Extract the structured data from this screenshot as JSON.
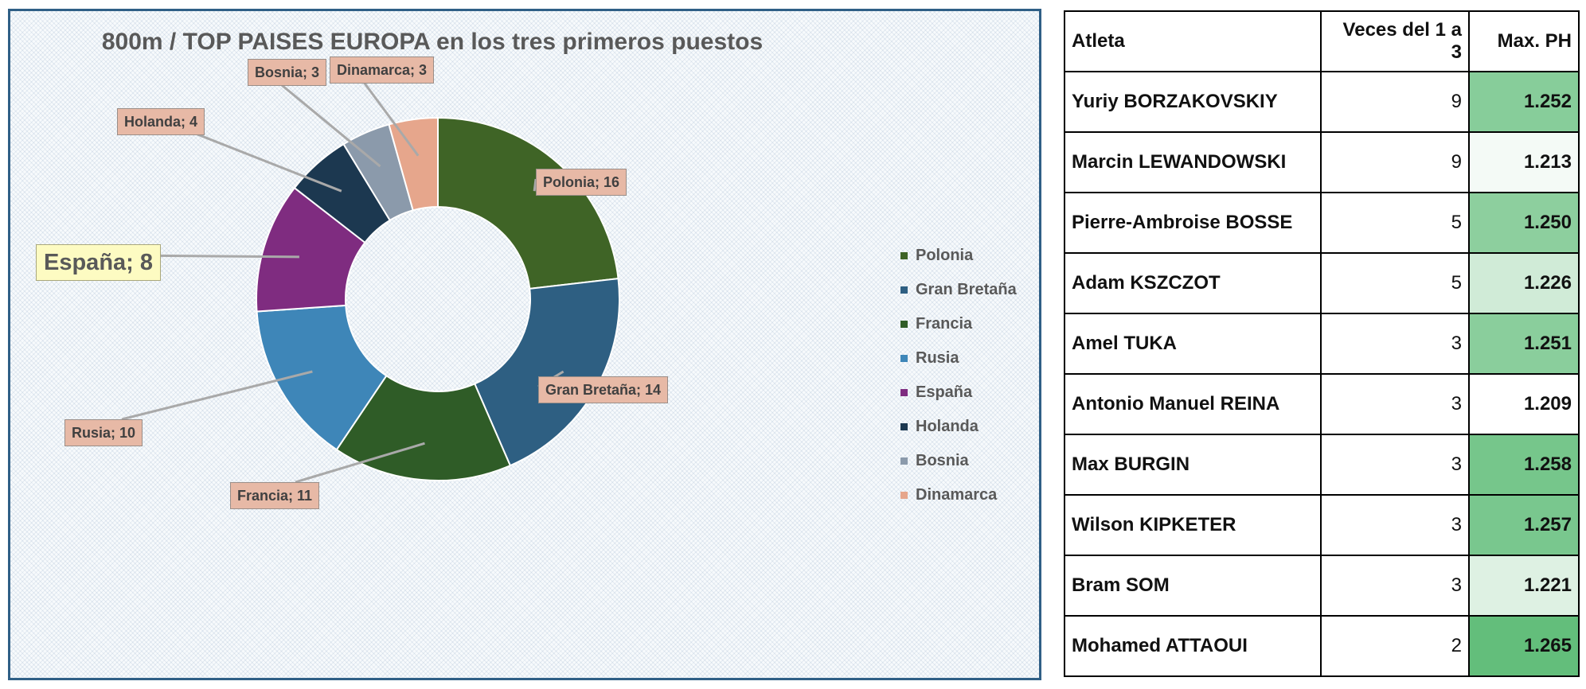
{
  "chart_data": {
    "type": "pie",
    "donut": true,
    "title": "800m / TOP  PAISES EUROPA en los tres primeros puestos",
    "categories": [
      "Polonia",
      "Gran Bretaña",
      "Francia",
      "Rusia",
      "España",
      "Holanda",
      "Bosnia",
      "Dinamarca"
    ],
    "values": [
      16,
      14,
      11,
      10,
      8,
      4,
      3,
      3
    ],
    "labels": [
      "Polonia; 16",
      "Gran Bretaña; 14",
      "Francia; 11",
      "Rusia; 10",
      "España; 8",
      "Holanda; 4",
      "Bosnia; 3",
      "Dinamarca; 3"
    ],
    "colors": [
      "#3f6426",
      "#2e5f82",
      "#2f5c27",
      "#3e86b8",
      "#7f2c80",
      "#1c3850",
      "#8b9aab",
      "#e6a68c"
    ],
    "legend_position": "right",
    "highlighted_label": "España; 8"
  },
  "table": {
    "headers": [
      "Atleta",
      "Veces del 1 a 3",
      "Max. PH"
    ],
    "rows": [
      {
        "athlete": "Yuriy BORZAKOVSKIY",
        "times": "9",
        "max_ph": "1.252",
        "max_ph_value": 1.252
      },
      {
        "athlete": "Marcin LEWANDOWSKI",
        "times": "9",
        "max_ph": "1.213",
        "max_ph_value": 1.213
      },
      {
        "athlete": "Pierre-Ambroise BOSSE",
        "times": "5",
        "max_ph": "1.250",
        "max_ph_value": 1.25
      },
      {
        "athlete": "Adam KSZCZOT",
        "times": "5",
        "max_ph": "1.226",
        "max_ph_value": 1.226
      },
      {
        "athlete": "Amel TUKA",
        "times": "3",
        "max_ph": "1.251",
        "max_ph_value": 1.251
      },
      {
        "athlete": "Antonio Manuel REINA",
        "times": "3",
        "max_ph": "1.209",
        "max_ph_value": 1.209
      },
      {
        "athlete": "Max BURGIN",
        "times": "3",
        "max_ph": "1.258",
        "max_ph_value": 1.258
      },
      {
        "athlete": "Wilson KIPKETER",
        "times": "3",
        "max_ph": "1.257",
        "max_ph_value": 1.257
      },
      {
        "athlete": "Bram SOM",
        "times": "3",
        "max_ph": "1.221",
        "max_ph_value": 1.221
      },
      {
        "athlete": "Mohamed ATTAOUI",
        "times": "2",
        "max_ph": "1.265",
        "max_ph_value": 1.265
      }
    ],
    "colors": {
      "scale_low": "#ffffff",
      "scale_high": "#63be7b"
    }
  }
}
